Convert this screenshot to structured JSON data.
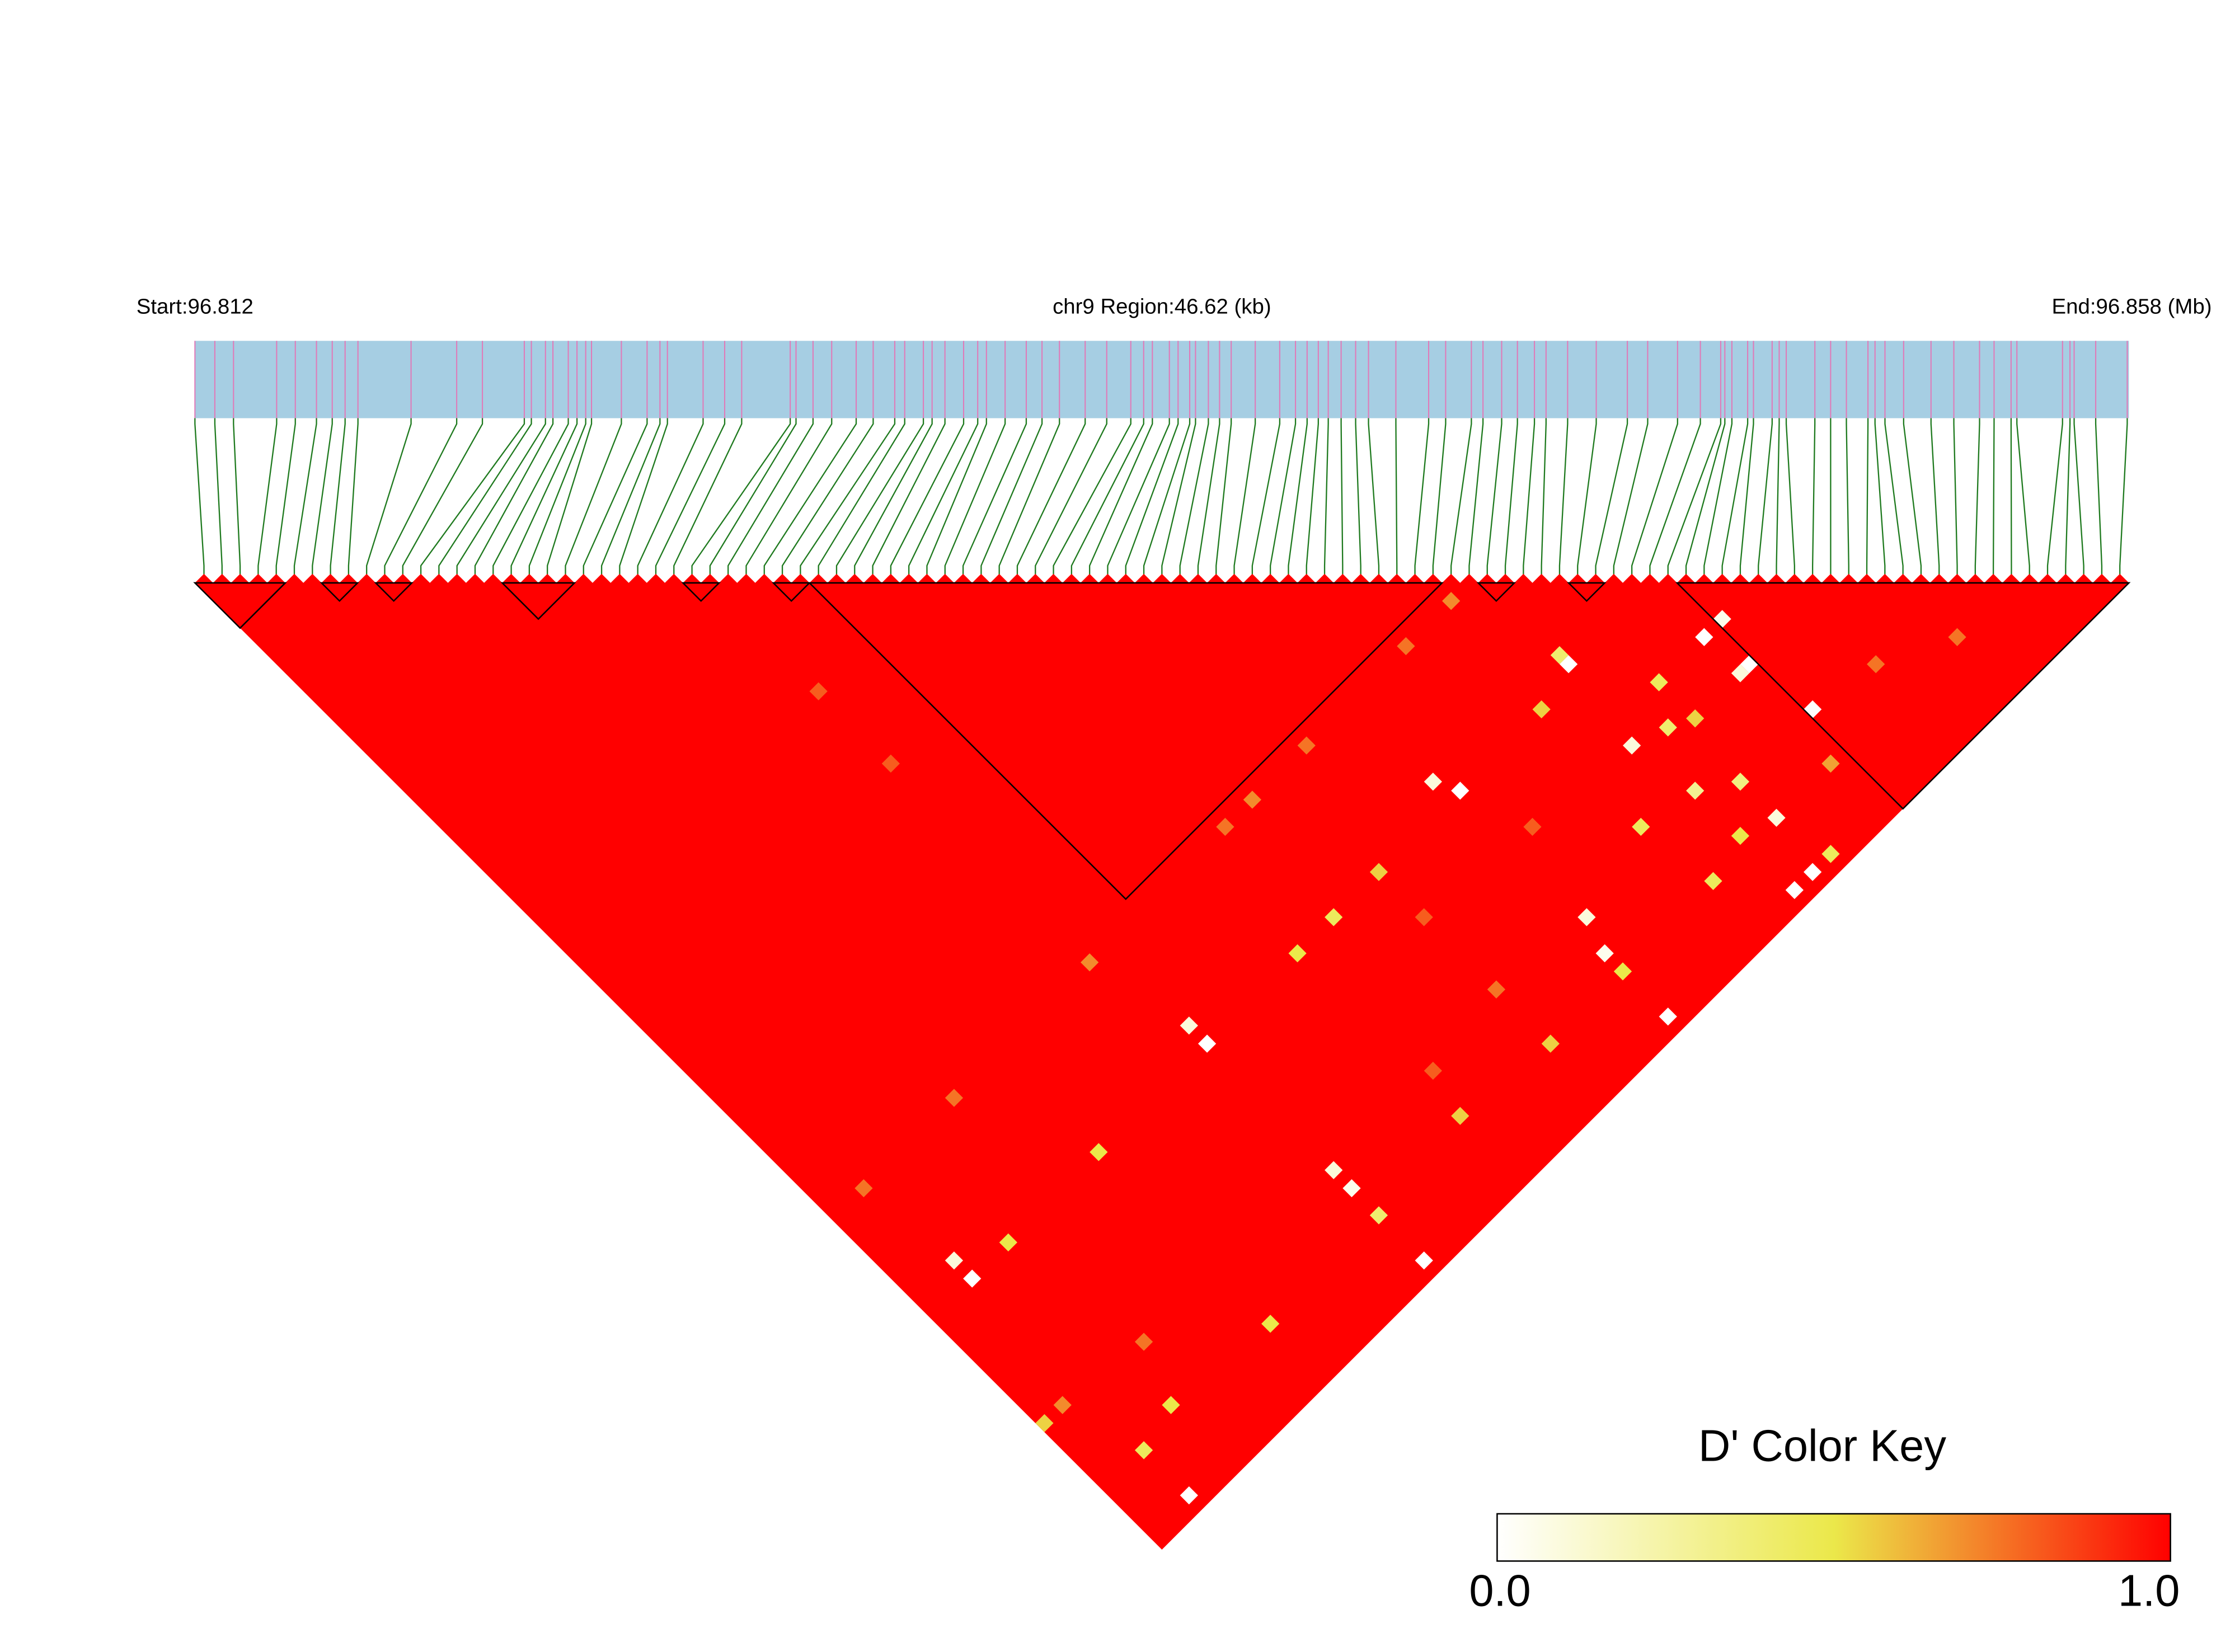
{
  "chart_data": {
    "type": "ld_heatmap",
    "start_label": "Start:96.812",
    "region_label": "chr9 Region:46.62 (kb)",
    "end_label": "End:96.858 (Mb)",
    "xlim": [
      0,
      46.62
    ],
    "snp_positions": [
      0.0,
      0.48,
      0.93,
      1.97,
      2.42,
      2.93,
      3.31,
      3.62,
      3.93,
      5.21,
      6.31,
      6.93,
      7.94,
      8.11,
      8.45,
      8.63,
      9.0,
      9.21,
      9.42,
      9.56,
      10.28,
      10.9,
      11.21,
      11.39,
      12.25,
      12.77,
      13.18,
      14.35,
      14.49,
      14.9,
      15.35,
      15.94,
      16.35,
      16.87,
      17.11,
      17.56,
      17.77,
      18.08,
      18.53,
      18.87,
      19.08,
      19.53,
      20.04,
      20.42,
      20.84,
      21.46,
      21.98,
      22.56,
      22.87,
      23.08,
      23.49,
      23.7,
      23.98,
      24.12,
      24.43,
      24.7,
      24.98,
      25.56,
      26.15,
      26.53,
      26.81,
      27.08,
      27.32,
      27.63,
      27.98,
      28.29,
      28.95,
      29.74,
      30.15,
      30.77,
      31.05,
      31.5,
      31.88,
      32.29,
      32.57,
      33.09,
      33.78,
      34.53,
      35.02,
      35.74,
      36.29,
      36.78,
      36.88,
      37.05,
      37.43,
      37.57,
      38.02,
      38.19,
      38.36,
      39.05,
      39.43,
      39.81,
      40.33,
      40.5,
      40.74,
      41.19,
      41.85,
      42.4,
      43.02,
      43.37,
      43.78,
      43.92,
      45.02,
      45.2,
      45.3,
      45.82,
      46.58
    ],
    "blocks": [
      [
        0,
        4
      ],
      [
        7,
        8
      ],
      [
        10,
        11
      ],
      [
        17,
        20
      ],
      [
        27,
        28
      ],
      [
        32,
        33
      ],
      [
        34,
        68
      ],
      [
        71,
        72
      ],
      [
        76,
        77
      ],
      [
        82,
        106
      ]
    ],
    "background_value": 1,
    "cells": [
      [
        40,
        99,
        0.55
      ],
      [
        49,
        100,
        0.55
      ],
      [
        40,
        81,
        0.5
      ],
      [
        49,
        81,
        0.55
      ],
      [
        71,
        94,
        0.3
      ],
      [
        74,
        96,
        0.35
      ],
      [
        82,
        86,
        0.05
      ],
      [
        81,
        90,
        0
      ],
      [
        80,
        90,
        0.1
      ],
      [
        82,
        96,
        0
      ],
      [
        71,
        105,
        0
      ],
      [
        57,
        105,
        0
      ],
      [
        4,
        105,
        0
      ],
      [
        8,
        99,
        0.5
      ],
      [
        4,
        100,
        0.45
      ],
      [
        0,
        93,
        0.55
      ],
      [
        18,
        100,
        0.5
      ],
      [
        30,
        105,
        0
      ],
      [
        30,
        100,
        0.4
      ],
      [
        30,
        97,
        0.05
      ],
      [
        30,
        95,
        0.1
      ],
      [
        30,
        81,
        0
      ],
      [
        30,
        79,
        0.1
      ],
      [
        4,
        81,
        0
      ],
      [
        4,
        79,
        0.1
      ],
      [
        8,
        81,
        0.5
      ],
      [
        18,
        81,
        0.5
      ],
      [
        57,
        100,
        0.5
      ],
      [
        57,
        98,
        0.05
      ],
      [
        58,
        95,
        0.1
      ],
      [
        57,
        79,
        0.1
      ],
      [
        58,
        81,
        0
      ],
      [
        44,
        81,
        0.45
      ],
      [
        73,
        89,
        0.4
      ],
      [
        75,
        90,
        0.55
      ],
      [
        75,
        86,
        0.45
      ],
      [
        70,
        88,
        0.1
      ],
      [
        67,
        81,
        0.55
      ],
      [
        71,
        79,
        0.4
      ],
      [
        71,
        80,
        0
      ],
      [
        67,
        100,
        0.45
      ],
      [
        71,
        99,
        0.5
      ],
      [
        74,
        100,
        0.1
      ],
      [
        73,
        105,
        0
      ],
      [
        75,
        105,
        0.45
      ],
      [
        66,
        93,
        0.45
      ],
      [
        80,
        86,
        0
      ],
      [
        94,
        100,
        0.75
      ],
      [
        80,
        100,
        0.65
      ],
      [
        68,
        70,
        0.7
      ],
      [
        63,
        70,
        0.75
      ],
      [
        52,
        70,
        0.75
      ],
      [
        46,
        70,
        0.7
      ],
      [
        28,
        70,
        0.7
      ],
      [
        28,
        40,
        0.8
      ],
      [
        28,
        48,
        0.8
      ],
      [
        49,
        94,
        0.75
      ],
      [
        49,
        86,
        0.8
      ],
      [
        41,
        95,
        0.8
      ],
      [
        2,
        93,
        0.7
      ],
      [
        10,
        94,
        0.75
      ],
      [
        3,
        70,
        0.75
      ],
      [
        13,
        70,
        0.75
      ],
      [
        88,
        97,
        0.75
      ],
      [
        60,
        87,
        0.8
      ],
      [
        43,
        70,
        0.75
      ]
    ],
    "colorscale": [
      {
        "value": 0,
        "color": "#ffffff"
      },
      {
        "value": 0.5,
        "color": "#ebe84a"
      },
      {
        "value": 1,
        "color": "#ff0000"
      }
    ],
    "color_key": {
      "title": "D' Color Key",
      "ticks": [
        {
          "value": 0,
          "label": "0.0"
        },
        {
          "value": 1,
          "label": "1.0"
        }
      ]
    },
    "track_color": "#a6cee3",
    "snp_line_color": "#e07ab8",
    "link_color": "#1f7a1f",
    "block_color": "#000000"
  }
}
